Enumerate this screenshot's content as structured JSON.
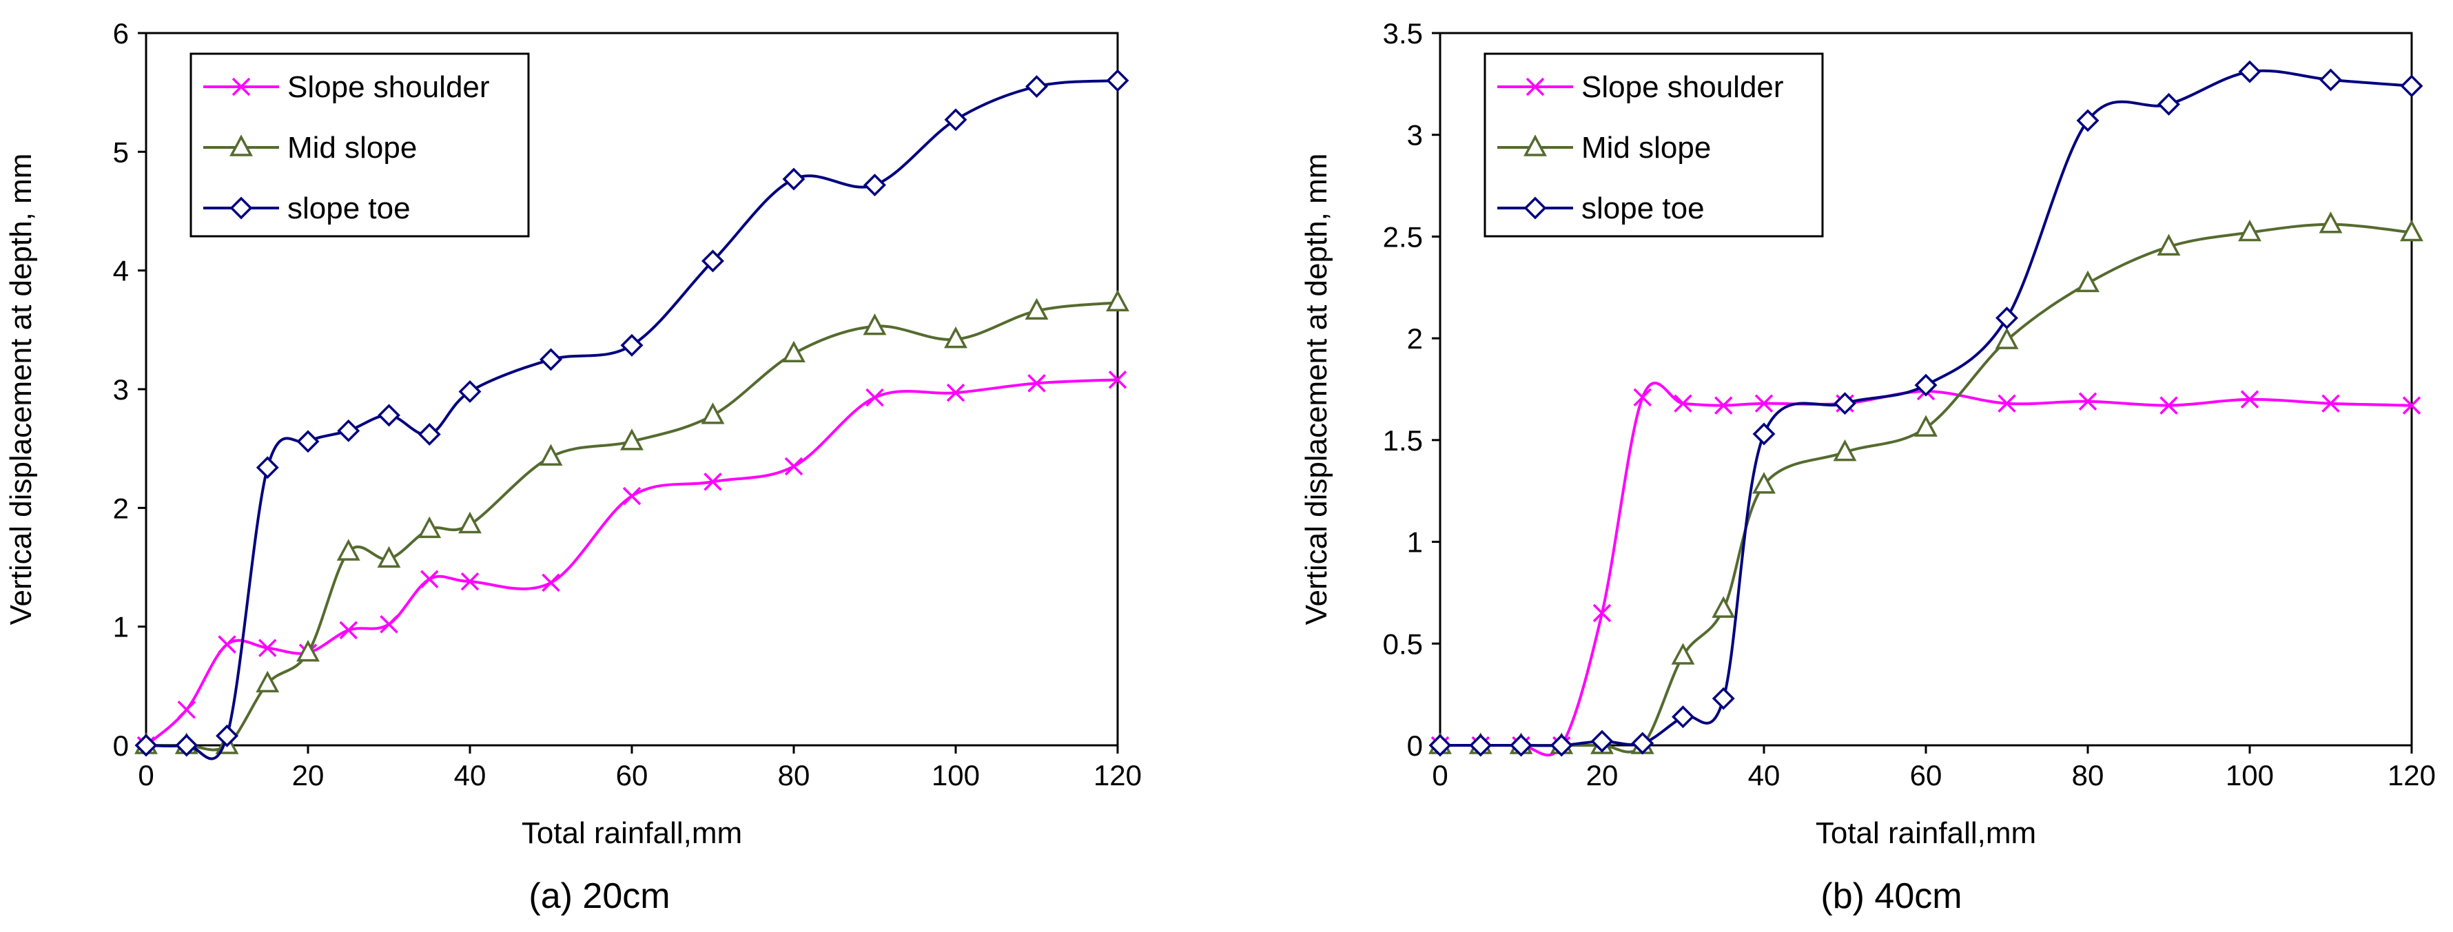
{
  "chart_data": [
    {
      "type": "line",
      "caption": "(a) 20cm",
      "xlabel": "Total rainfall,mm",
      "ylabel": "Vertical displacement at depth, mm",
      "xlim": [
        0,
        120
      ],
      "ylim": [
        0,
        6
      ],
      "xticks": [
        0,
        20,
        40,
        60,
        80,
        100,
        120
      ],
      "yticks": [
        0,
        1,
        2,
        3,
        4,
        5,
        6
      ],
      "legend_position": "top-left",
      "series": [
        {
          "name": "Slope shoulder",
          "marker": "x",
          "color": "#ff00ff",
          "x": [
            0,
            5,
            10,
            15,
            20,
            25,
            30,
            35,
            40,
            50,
            60,
            70,
            80,
            90,
            100,
            110,
            120
          ],
          "y": [
            0,
            0.3,
            0.85,
            0.82,
            0.78,
            0.97,
            1.02,
            1.4,
            1.38,
            1.37,
            2.1,
            2.22,
            2.35,
            2.93,
            2.97,
            3.05,
            3.08
          ]
        },
        {
          "name": "Mid slope",
          "marker": "triangle",
          "color": "#556b2f",
          "x": [
            0,
            5,
            10,
            15,
            20,
            25,
            30,
            35,
            40,
            50,
            60,
            70,
            80,
            90,
            100,
            110,
            120
          ],
          "y": [
            0,
            0,
            0,
            0.52,
            0.78,
            1.63,
            1.57,
            1.82,
            1.86,
            2.43,
            2.56,
            2.78,
            3.3,
            3.53,
            3.42,
            3.66,
            3.73
          ]
        },
        {
          "name": "slope toe",
          "marker": "diamond",
          "color": "#000080",
          "x": [
            0,
            5,
            10,
            15,
            20,
            25,
            30,
            35,
            40,
            50,
            60,
            70,
            80,
            90,
            100,
            110,
            120
          ],
          "y": [
            0,
            0,
            0.08,
            2.34,
            2.56,
            2.65,
            2.78,
            2.62,
            2.98,
            3.25,
            3.37,
            4.08,
            4.77,
            4.72,
            5.27,
            5.55,
            5.6
          ]
        }
      ]
    },
    {
      "type": "line",
      "caption": "(b) 40cm",
      "xlabel": "Total rainfall,mm",
      "ylabel": "Vertical displacement at depth, mm",
      "xlim": [
        0,
        120
      ],
      "ylim": [
        0,
        3.5
      ],
      "xticks": [
        0,
        20,
        40,
        60,
        80,
        100,
        120
      ],
      "yticks": [
        0,
        0.5,
        1,
        1.5,
        2,
        2.5,
        3,
        3.5
      ],
      "legend_position": "top-left",
      "series": [
        {
          "name": "Slope shoulder",
          "marker": "x",
          "color": "#ff00ff",
          "x": [
            0,
            5,
            10,
            15,
            20,
            25,
            30,
            35,
            40,
            50,
            60,
            70,
            80,
            90,
            100,
            110,
            120
          ],
          "y": [
            0,
            0,
            0,
            0,
            0.65,
            1.71,
            1.68,
            1.67,
            1.68,
            1.68,
            1.74,
            1.68,
            1.69,
            1.67,
            1.7,
            1.68,
            1.67
          ]
        },
        {
          "name": "Mid slope",
          "marker": "triangle",
          "color": "#556b2f",
          "x": [
            0,
            5,
            10,
            15,
            20,
            25,
            30,
            35,
            40,
            50,
            60,
            70,
            80,
            90,
            100,
            110,
            120
          ],
          "y": [
            0,
            0,
            0,
            0,
            0,
            0,
            0.44,
            0.67,
            1.28,
            1.44,
            1.56,
            1.99,
            2.27,
            2.45,
            2.52,
            2.56,
            2.52
          ]
        },
        {
          "name": "slope toe",
          "marker": "diamond",
          "color": "#000080",
          "x": [
            0,
            5,
            10,
            15,
            20,
            25,
            30,
            35,
            40,
            50,
            60,
            70,
            80,
            90,
            100,
            110,
            120
          ],
          "y": [
            0,
            0,
            0,
            0,
            0.02,
            0.01,
            0.14,
            0.23,
            1.53,
            1.68,
            1.77,
            2.1,
            3.07,
            3.15,
            3.31,
            3.27,
            3.24
          ]
        }
      ]
    }
  ]
}
